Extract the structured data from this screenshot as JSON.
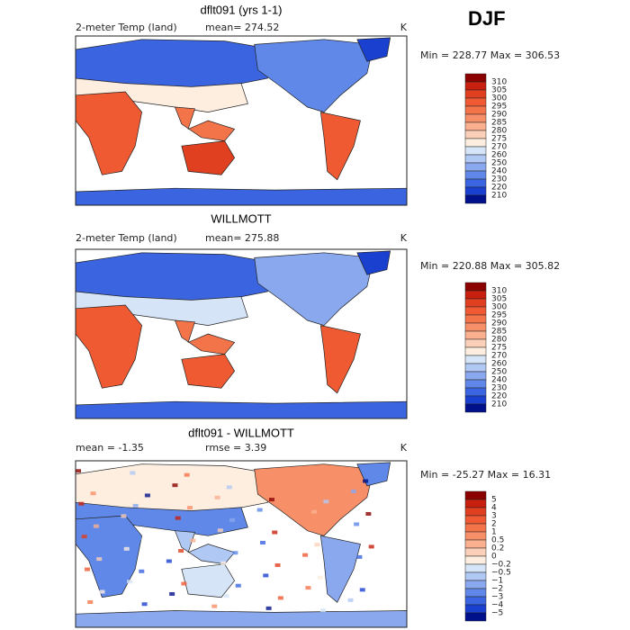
{
  "season": "DJF",
  "panels": [
    {
      "title": "dflt091 (yrs 1-1)",
      "variable": "2-meter Temp (land)",
      "stat": "mean= 274.52",
      "units": "K",
      "range": "Min = 228.77 Max = 306.53",
      "colorbar": {
        "labels": [
          "310",
          "305",
          "300",
          "295",
          "290",
          "285",
          "280",
          "275",
          "270",
          "260",
          "250",
          "240",
          "230",
          "220",
          "210"
        ],
        "colors": [
          "#8b0000",
          "#c8200e",
          "#e0401f",
          "#ef5a32",
          "#f4744a",
          "#f79068",
          "#fab08e",
          "#fcd0b8",
          "#fdeee0",
          "#d6e4f8",
          "#b0c8f4",
          "#8aa8ee",
          "#5f88e8",
          "#3a64e0",
          "#1a40d0",
          "#00108a"
        ]
      }
    },
    {
      "title": "WILLMOTT",
      "variable": "2-meter Temp (land)",
      "stat": "mean= 275.88",
      "units": "K",
      "range": "Min = 220.88 Max = 305.82",
      "colorbar": {
        "labels": [
          "310",
          "305",
          "300",
          "295",
          "290",
          "285",
          "280",
          "275",
          "270",
          "260",
          "250",
          "240",
          "230",
          "220",
          "210"
        ],
        "colors": [
          "#8b0000",
          "#c8200e",
          "#e0401f",
          "#ef5a32",
          "#f4744a",
          "#f79068",
          "#fab08e",
          "#fcd0b8",
          "#fdeee0",
          "#d6e4f8",
          "#b0c8f4",
          "#8aa8ee",
          "#5f88e8",
          "#3a64e0",
          "#1a40d0",
          "#00108a"
        ]
      }
    },
    {
      "title": "dflt091 - WILLMOTT",
      "variable": "mean =   -1.35",
      "stat": "rmse =    3.39",
      "units": "K",
      "range": "Min = -25.27 Max =  16.31",
      "colorbar": {
        "labels": [
          "5",
          "4",
          "3",
          "2",
          "1",
          "0.5",
          "0.2",
          "0",
          "−0.2",
          "−0.5",
          "−1",
          "−2",
          "−3",
          "−4",
          "−5"
        ],
        "colors": [
          "#8b0000",
          "#c8200e",
          "#e0401f",
          "#ef5a32",
          "#f4744a",
          "#f79068",
          "#fab08e",
          "#fcd0b8",
          "#fdeee0",
          "#d6e4f8",
          "#b0c8f4",
          "#8aa8ee",
          "#5f88e8",
          "#3a64e0",
          "#1a40d0",
          "#00108a"
        ]
      }
    }
  ]
}
